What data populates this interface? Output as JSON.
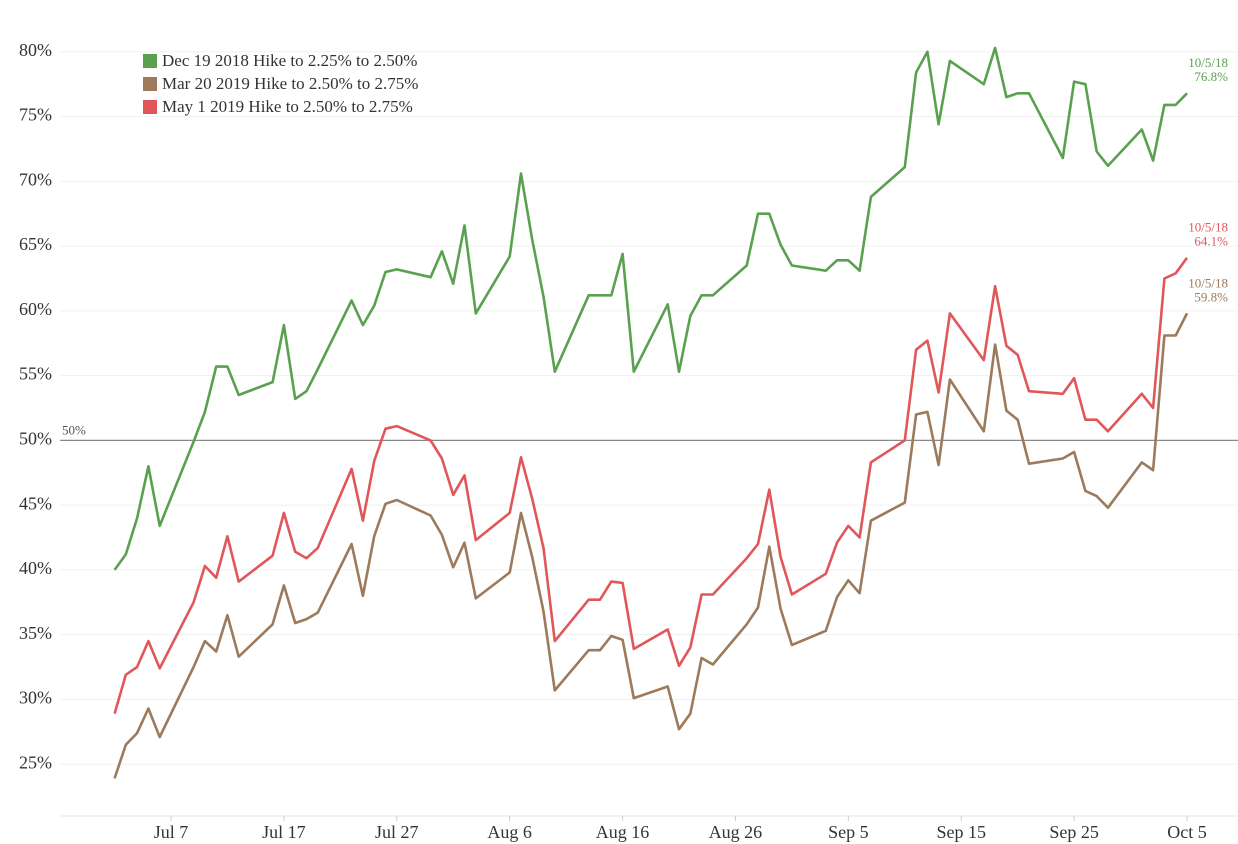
{
  "chart_data": {
    "type": "line",
    "x": [
      "Jul 2",
      "Jul 3",
      "Jul 4",
      "Jul 5",
      "Jul 6",
      "Jul 9",
      "Jul 10",
      "Jul 11",
      "Jul 12",
      "Jul 13",
      "Jul 16",
      "Jul 17",
      "Jul 18",
      "Jul 19",
      "Jul 20",
      "Jul 23",
      "Jul 24",
      "Jul 25",
      "Jul 26",
      "Jul 27",
      "Jul 30",
      "Jul 31",
      "Aug 1",
      "Aug 2",
      "Aug 3",
      "Aug 6",
      "Aug 7",
      "Aug 8",
      "Aug 9",
      "Aug 10",
      "Aug 13",
      "Aug 14",
      "Aug 15",
      "Aug 16",
      "Aug 17",
      "Aug 20",
      "Aug 21",
      "Aug 22",
      "Aug 23",
      "Aug 24",
      "Aug 27",
      "Aug 28",
      "Aug 29",
      "Aug 30",
      "Aug 31",
      "Sep 3",
      "Sep 4",
      "Sep 5",
      "Sep 6",
      "Sep 7",
      "Sep 10",
      "Sep 11",
      "Sep 12",
      "Sep 13",
      "Sep 14",
      "Sep 17",
      "Sep 18",
      "Sep 19",
      "Sep 20",
      "Sep 21",
      "Sep 24",
      "Sep 25",
      "Sep 26",
      "Sep 27",
      "Sep 28",
      "Oct 1",
      "Oct 2",
      "Oct 3",
      "Oct 4",
      "Oct 5"
    ],
    "series": [
      {
        "name": "Dec 19 2018 Hike to 2.25% to 2.50%",
        "color": "#59a14f",
        "values": [
          40,
          41.2,
          44,
          48,
          43.4,
          49.9,
          52.2,
          55.7,
          55.7,
          53.5,
          54.5,
          58.9,
          53.2,
          53.8,
          55.5,
          60.8,
          58.9,
          60.4,
          63,
          63.2,
          62.6,
          64.6,
          62.1,
          66.6,
          59.8,
          64.2,
          70.6,
          65.5,
          61.1,
          55.3,
          61.2,
          61.2,
          61.2,
          64.4,
          55.3,
          60.5,
          55.3,
          59.6,
          61.2,
          61.2,
          63.5,
          67.5,
          67.5,
          65.1,
          63.5,
          63.1,
          63.9,
          63.9,
          63.1,
          68.8,
          71.1,
          78.4,
          80,
          74.4,
          79.3,
          77.5,
          80.3,
          76.5,
          76.8,
          76.8,
          71.8,
          77.7,
          77.5,
          72.3,
          71.2,
          74,
          71.6,
          75.9,
          75.9,
          76.8
        ],
        "end_label": {
          "date": "10/5/18",
          "value": "76.8%"
        }
      },
      {
        "name": "Mar 20 2019 Hike to 2.50% to 2.75%",
        "color": "#9c7a5b",
        "values": [
          23.9,
          26.5,
          27.4,
          29.3,
          27.1,
          32.5,
          34.5,
          33.7,
          36.5,
          33.3,
          35.8,
          38.8,
          35.9,
          36.2,
          36.7,
          42,
          38,
          42.6,
          45.1,
          45.4,
          44.2,
          42.7,
          40.2,
          42.1,
          37.8,
          39.8,
          44.4,
          41,
          36.8,
          30.7,
          33.8,
          33.8,
          34.9,
          34.6,
          30.1,
          31,
          27.7,
          28.9,
          33.2,
          32.7,
          35.8,
          37.1,
          41.8,
          37,
          34.2,
          35.3,
          37.9,
          39.2,
          38.2,
          43.8,
          45.2,
          52,
          52.2,
          48.1,
          54.7,
          50.7,
          57.4,
          52.3,
          51.6,
          48.2,
          48.6,
          49.1,
          46.1,
          45.7,
          44.8,
          48.3,
          47.7,
          58.1,
          58.1,
          59.8
        ],
        "end_label": {
          "date": "10/5/18",
          "value": "59.8%"
        }
      },
      {
        "name": "May 1 2019 Hike to 2.50% to 2.75%",
        "color": "#e15759",
        "values": [
          28.9,
          31.9,
          32.5,
          34.5,
          32.4,
          37.5,
          40.3,
          39.4,
          42.6,
          39.1,
          41.1,
          44.4,
          41.4,
          40.9,
          41.7,
          47.8,
          43.8,
          48.4,
          50.9,
          51.1,
          50,
          48.6,
          45.8,
          47.3,
          42.3,
          44.4,
          48.7,
          45.5,
          41.7,
          34.5,
          37.7,
          37.7,
          39.1,
          39,
          33.9,
          35.4,
          32.6,
          34,
          38.1,
          38.1,
          40.9,
          42,
          46.2,
          41,
          38.1,
          39.7,
          42.1,
          43.4,
          42.5,
          48.3,
          50,
          57,
          57.7,
          53.7,
          59.8,
          56.2,
          61.9,
          57.3,
          56.6,
          53.8,
          53.6,
          54.8,
          51.6,
          51.6,
          50.7,
          53.6,
          52.5,
          62.5,
          62.9,
          64.1
        ],
        "end_label": {
          "date": "10/5/18",
          "value": "64.1%"
        }
      }
    ],
    "xticks": [
      "Jul 7",
      "Jul 17",
      "Jul 27",
      "Aug 6",
      "Aug 16",
      "Aug 26",
      "Sep 5",
      "Sep 15",
      "Sep 25",
      "Oct 5"
    ],
    "ylim": [
      21,
      84
    ],
    "yticks": [
      {
        "value": 25,
        "label": "25%"
      },
      {
        "value": 30,
        "label": "30%"
      },
      {
        "value": 35,
        "label": "35%"
      },
      {
        "value": 40,
        "label": "40%"
      },
      {
        "value": 45,
        "label": "45%"
      },
      {
        "value": 50,
        "label": "50%"
      },
      {
        "value": 55,
        "label": "55%"
      },
      {
        "value": 60,
        "label": "60%"
      },
      {
        "value": 65,
        "label": "65%"
      },
      {
        "value": 70,
        "label": "70%"
      },
      {
        "value": 75,
        "label": "75%"
      },
      {
        "value": 80,
        "label": "80%"
      }
    ],
    "reference_line": {
      "value": 50,
      "label": "50%"
    },
    "grid": true,
    "legend": "top-left"
  }
}
